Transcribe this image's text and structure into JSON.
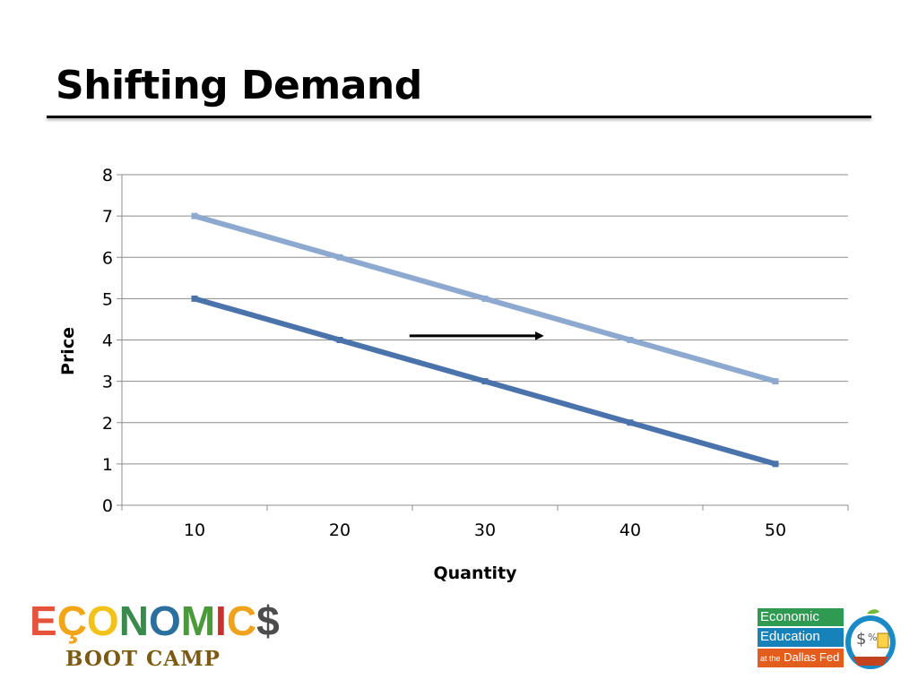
{
  "slide": {
    "title": "Shifting Demand"
  },
  "chart_data": {
    "type": "line",
    "categories": [
      "10",
      "20",
      "30",
      "40",
      "50"
    ],
    "series": [
      {
        "values": [
          7,
          6,
          5,
          4,
          3
        ],
        "color": "#8ea9d0"
      },
      {
        "values": [
          5,
          4,
          3,
          2,
          1
        ],
        "color": "#4a72ab"
      }
    ],
    "yticks": [
      "0",
      "1",
      "2",
      "3",
      "4",
      "5",
      "6",
      "7",
      "8"
    ],
    "ylim": [
      0,
      8
    ],
    "xlabel": "Quantity",
    "ylabel": "Price",
    "grid": true,
    "legend": "none",
    "annotations": [
      {
        "type": "arrow",
        "direction": "right",
        "y": 4.1,
        "x_from": 24.8,
        "x_to": 34
      }
    ]
  },
  "logos": {
    "left": {
      "word_letters": [
        {
          "ch": "E",
          "color": "#e5533b"
        },
        {
          "ch": "Ç",
          "color": "#f2a516"
        },
        {
          "ch": "O",
          "color": "#f2c21a"
        },
        {
          "ch": "N",
          "color": "#3a8a4e"
        },
        {
          "ch": "O",
          "color": "#2a6f9e"
        },
        {
          "ch": "M",
          "color": "#4a9a3c"
        },
        {
          "ch": "I",
          "color": "#c8312e"
        },
        {
          "ch": "C",
          "color": "#f0a21c"
        },
        {
          "ch": "$",
          "color": "#4c4c4c"
        }
      ],
      "subtitle": "BOOT CAMP"
    },
    "right": {
      "line1": "Economic",
      "line2": "Education",
      "line3_prefix": "at the",
      "line3": "Dallas Fed",
      "emblem_icons": [
        "apple-icon",
        "dollar-icon",
        "percent-icon"
      ]
    }
  }
}
